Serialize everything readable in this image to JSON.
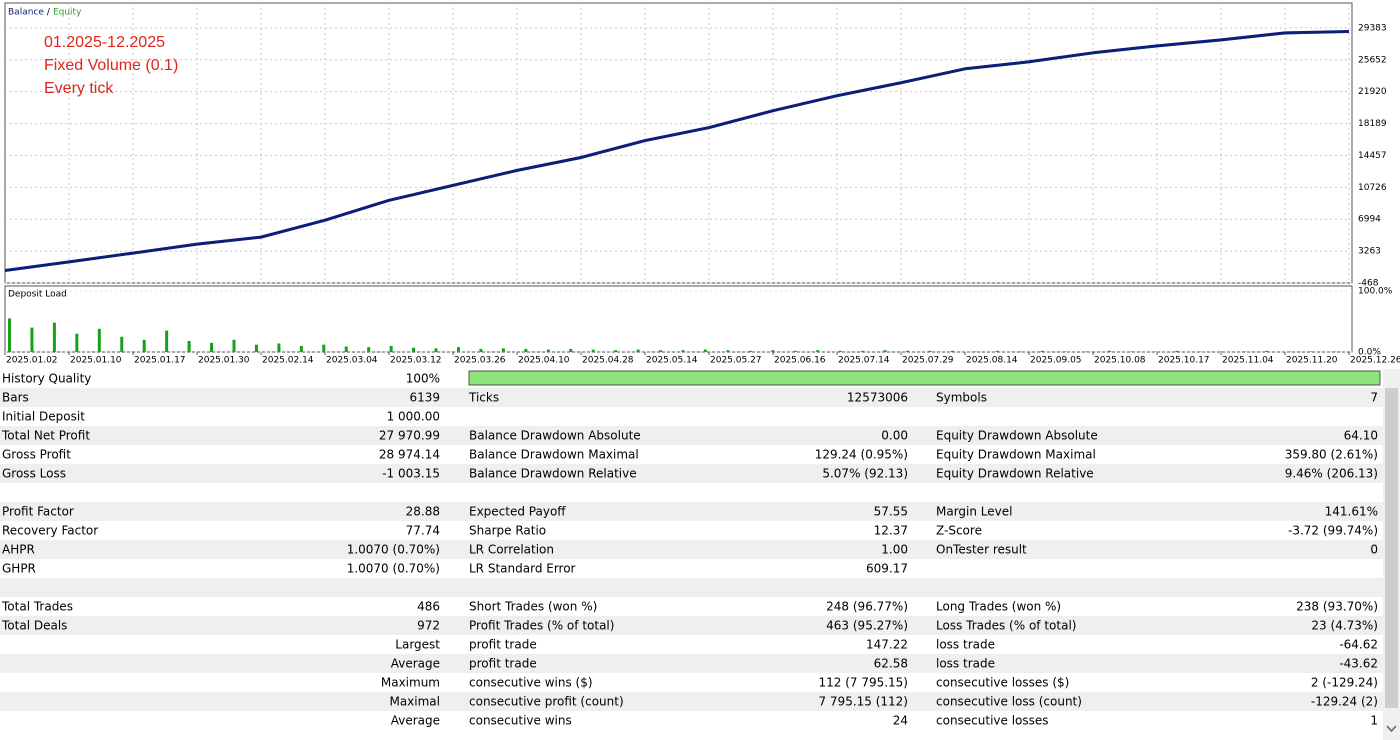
{
  "chart_data": [
    {
      "type": "line",
      "annotations": [
        "01.2025-12.2025",
        "Fixed Volume (0.1)",
        "Every tick"
      ],
      "legend_separator": "/",
      "categories": [
        "2025.01.02",
        "2025.01.10",
        "2025.01.17",
        "2025.01.30",
        "2025.02.14",
        "2025.03.04",
        "2025.03.12",
        "2025.03.26",
        "2025.04.10",
        "2025.04.28",
        "2025.05.14",
        "2025.05.27",
        "2025.06.16",
        "2025.07.14",
        "2025.07.29",
        "2025.08.14",
        "2025.09.05",
        "2025.10.08",
        "2025.10.17",
        "2025.11.04",
        "2025.11.20",
        "2025.12.26"
      ],
      "series": [
        {
          "name": "Balance",
          "color": "#0b1f7a",
          "values": [
            1000,
            2000,
            3030,
            4080,
            4900,
            6880,
            9210,
            10960,
            12710,
            14220,
            16200,
            17720,
            19700,
            21450,
            22970,
            24600,
            25420,
            26470,
            27280,
            27980,
            28800,
            28970
          ]
        },
        {
          "name": "Equity",
          "color": "#2ca02c",
          "values": [
            980,
            1960,
            2990,
            4040,
            4860,
            6830,
            9160,
            10900,
            12650,
            14160,
            16140,
            17660,
            19640,
            21390,
            22910,
            24540,
            25360,
            26410,
            27220,
            27920,
            28740,
            28930
          ]
        }
      ],
      "ylim": [
        -468,
        32298
      ],
      "yticks": [
        29383,
        25652,
        21920,
        18189,
        14457,
        10726,
        6994,
        3263,
        -468
      ],
      "grid": true
    },
    {
      "type": "bar",
      "title": "Deposit Load",
      "color": "#19a019",
      "values": [
        55,
        40,
        48,
        30,
        38,
        25,
        20,
        35,
        18,
        15,
        20,
        12,
        14,
        10,
        12,
        9,
        8,
        10,
        7,
        6,
        8,
        5,
        6,
        5,
        4,
        5,
        4,
        3,
        4,
        3,
        3,
        4,
        3,
        2,
        3,
        2,
        3,
        2,
        2,
        3,
        2,
        2,
        2,
        1,
        2,
        1,
        2,
        1,
        1,
        2,
        1,
        1,
        2,
        1,
        1,
        1,
        2,
        1,
        1,
        1
      ],
      "ylim": [
        0,
        100
      ],
      "yticks": [
        {
          "value": 100,
          "label": "100.0%"
        },
        {
          "value": 0,
          "label": "0.0%"
        }
      ],
      "grid": true
    }
  ],
  "table": {
    "rows": [
      [
        "History Quality",
        "100%",
        null,
        null,
        null,
        null
      ],
      [
        "Bars",
        "6139",
        "Ticks",
        "12573006",
        "Symbols",
        "7"
      ],
      [
        "Initial Deposit",
        "1 000.00",
        null,
        null,
        null,
        null
      ],
      [
        "Total Net Profit",
        "27 970.99",
        "Balance Drawdown Absolute",
        "0.00",
        "Equity Drawdown Absolute",
        "64.10"
      ],
      [
        "Gross Profit",
        "28 974.14",
        "Balance Drawdown Maximal",
        "129.24 (0.95%)",
        "Equity Drawdown Maximal",
        "359.80 (2.61%)"
      ],
      [
        "Gross Loss",
        "-1 003.15",
        "Balance Drawdown Relative",
        "5.07% (92.13)",
        "Equity Drawdown Relative",
        "9.46% (206.13)"
      ],
      [
        null,
        null,
        null,
        null,
        null,
        null
      ],
      [
        "Profit Factor",
        "28.88",
        "Expected Payoff",
        "57.55",
        "Margin Level",
        "141.61%"
      ],
      [
        "Recovery Factor",
        "77.74",
        "Sharpe Ratio",
        "12.37",
        "Z-Score",
        "-3.72 (99.74%)"
      ],
      [
        "AHPR",
        "1.0070 (0.70%)",
        "LR Correlation",
        "1.00",
        "OnTester result",
        "0"
      ],
      [
        "GHPR",
        "1.0070 (0.70%)",
        "LR Standard Error",
        "609.17",
        null,
        null
      ],
      [
        null,
        null,
        null,
        null,
        null,
        null
      ],
      [
        "Total Trades",
        "486",
        "Short Trades (won %)",
        "248 (96.77%)",
        "Long Trades (won %)",
        "238 (93.70%)"
      ],
      [
        "Total Deals",
        "972",
        "Profit Trades (% of total)",
        "463 (95.27%)",
        "Loss Trades (% of total)",
        "23 (4.73%)"
      ],
      [
        null,
        "Largest",
        "profit trade",
        "147.22",
        "loss trade",
        "-64.62"
      ],
      [
        null,
        "Average",
        "profit trade",
        "62.58",
        "loss trade",
        "-43.62"
      ],
      [
        null,
        "Maximum",
        "consecutive wins ($)",
        "112 (7 795.15)",
        "consecutive losses ($)",
        "2 (-129.24)"
      ],
      [
        null,
        "Maximal",
        "consecutive profit (count)",
        "7 795.15 (112)",
        "consecutive loss (count)",
        "-129.24 (2)"
      ],
      [
        null,
        "Average",
        "consecutive wins",
        "24",
        "consecutive losses",
        "1"
      ]
    ]
  }
}
